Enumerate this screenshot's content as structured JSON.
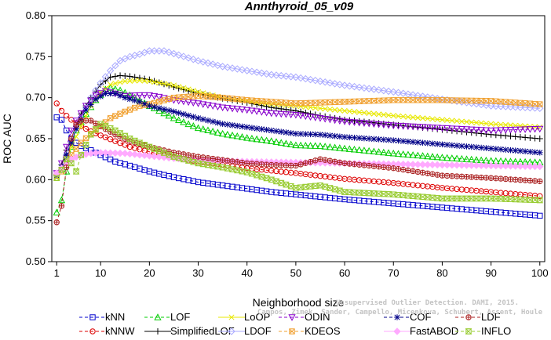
{
  "chart_data": {
    "type": "line",
    "title": "Annthyroid_05_v09",
    "xlabel": "Neighborhood size",
    "ylabel": "ROC AUC",
    "xlim": [
      0,
      101
    ],
    "ylim": [
      0.5,
      0.8
    ],
    "x_ticks": [
      1,
      10,
      20,
      30,
      40,
      50,
      60,
      70,
      80,
      90,
      100
    ],
    "y_ticks": [
      0.5,
      0.55,
      0.6,
      0.65,
      0.7,
      0.75,
      0.8
    ],
    "y_tick_labels": [
      "0.50",
      "0.55",
      "0.60",
      "0.65",
      "0.70",
      "0.75",
      "0.80"
    ],
    "grid": false,
    "legend_position": "bottom",
    "series": [
      {
        "name": "kNN",
        "color": "#0000cc",
        "marker": "square",
        "dash": "4,3",
        "points": [
          [
            1,
            0.676
          ],
          [
            2,
            0.673
          ],
          [
            3,
            0.66
          ],
          [
            4,
            0.65
          ],
          [
            5,
            0.645
          ],
          [
            6,
            0.641
          ],
          [
            8,
            0.636
          ],
          [
            10,
            0.63
          ],
          [
            13,
            0.622
          ],
          [
            16,
            0.617
          ],
          [
            20,
            0.61
          ],
          [
            25,
            0.603
          ],
          [
            30,
            0.597
          ],
          [
            35,
            0.593
          ],
          [
            40,
            0.589
          ],
          [
            45,
            0.585
          ],
          [
            50,
            0.582
          ],
          [
            60,
            0.576
          ],
          [
            70,
            0.571
          ],
          [
            80,
            0.566
          ],
          [
            90,
            0.561
          ],
          [
            100,
            0.556
          ]
        ]
      },
      {
        "name": "kNNW",
        "color": "#dd0000",
        "marker": "circle",
        "dash": "4,3",
        "points": [
          [
            1,
            0.693
          ],
          [
            2,
            0.684
          ],
          [
            3,
            0.678
          ],
          [
            4,
            0.673
          ],
          [
            5,
            0.669
          ],
          [
            6,
            0.665
          ],
          [
            8,
            0.659
          ],
          [
            10,
            0.654
          ],
          [
            13,
            0.647
          ],
          [
            16,
            0.64
          ],
          [
            20,
            0.634
          ],
          [
            25,
            0.627
          ],
          [
            30,
            0.622
          ],
          [
            35,
            0.618
          ],
          [
            40,
            0.614
          ],
          [
            45,
            0.611
          ],
          [
            50,
            0.608
          ],
          [
            60,
            0.601
          ],
          [
            70,
            0.596
          ],
          [
            80,
            0.59
          ],
          [
            90,
            0.585
          ],
          [
            100,
            0.58
          ]
        ]
      },
      {
        "name": "LOF",
        "color": "#00cc00",
        "marker": "triangle-up",
        "dash": "4,3",
        "points": [
          [
            1,
            0.56
          ],
          [
            2,
            0.575
          ],
          [
            3,
            0.61
          ],
          [
            4,
            0.64
          ],
          [
            5,
            0.66
          ],
          [
            7,
            0.68
          ],
          [
            9,
            0.697
          ],
          [
            11,
            0.71
          ],
          [
            12,
            0.712
          ],
          [
            14,
            0.709
          ],
          [
            17,
            0.7
          ],
          [
            20,
            0.69
          ],
          [
            25,
            0.675
          ],
          [
            30,
            0.663
          ],
          [
            35,
            0.656
          ],
          [
            40,
            0.651
          ],
          [
            45,
            0.647
          ],
          [
            50,
            0.642
          ],
          [
            55,
            0.641
          ],
          [
            60,
            0.638
          ],
          [
            70,
            0.632
          ],
          [
            80,
            0.627
          ],
          [
            90,
            0.623
          ],
          [
            100,
            0.621
          ]
        ]
      },
      {
        "name": "SimplifiedLOF",
        "color": "#000000",
        "marker": "plus",
        "dash": "",
        "points": [
          [
            1,
            0.606
          ],
          [
            2,
            0.618
          ],
          [
            3,
            0.636
          ],
          [
            4,
            0.65
          ],
          [
            5,
            0.665
          ],
          [
            6,
            0.68
          ],
          [
            8,
            0.7
          ],
          [
            10,
            0.716
          ],
          [
            12,
            0.725
          ],
          [
            14,
            0.727
          ],
          [
            16,
            0.726
          ],
          [
            20,
            0.722
          ],
          [
            25,
            0.713
          ],
          [
            30,
            0.705
          ],
          [
            35,
            0.699
          ],
          [
            40,
            0.694
          ],
          [
            45,
            0.688
          ],
          [
            50,
            0.684
          ],
          [
            55,
            0.678
          ],
          [
            60,
            0.673
          ],
          [
            70,
            0.667
          ],
          [
            80,
            0.661
          ],
          [
            90,
            0.655
          ],
          [
            100,
            0.65
          ]
        ]
      },
      {
        "name": "LoOP",
        "color": "#e8e800",
        "marker": "x",
        "dash": "",
        "points": [
          [
            1,
            0.603
          ],
          [
            2,
            0.61
          ],
          [
            3,
            0.624
          ],
          [
            4,
            0.64
          ],
          [
            6,
            0.665
          ],
          [
            8,
            0.69
          ],
          [
            10,
            0.706
          ],
          [
            12,
            0.716
          ],
          [
            15,
            0.72
          ],
          [
            18,
            0.721
          ],
          [
            20,
            0.72
          ],
          [
            25,
            0.715
          ],
          [
            30,
            0.707
          ],
          [
            35,
            0.7
          ],
          [
            40,
            0.696
          ],
          [
            45,
            0.692
          ],
          [
            50,
            0.69
          ],
          [
            60,
            0.684
          ],
          [
            70,
            0.678
          ],
          [
            80,
            0.673
          ],
          [
            90,
            0.668
          ],
          [
            100,
            0.664
          ]
        ]
      },
      {
        "name": "LDOF",
        "color": "#aaaaff",
        "marker": "diamond",
        "dash": "",
        "points": [
          [
            1,
            0.605
          ],
          [
            2,
            0.612
          ],
          [
            3,
            0.63
          ],
          [
            4,
            0.65
          ],
          [
            6,
            0.675
          ],
          [
            8,
            0.7
          ],
          [
            10,
            0.718
          ],
          [
            12,
            0.733
          ],
          [
            14,
            0.745
          ],
          [
            16,
            0.75
          ],
          [
            18,
            0.753
          ],
          [
            20,
            0.757
          ],
          [
            23,
            0.757
          ],
          [
            26,
            0.752
          ],
          [
            30,
            0.745
          ],
          [
            35,
            0.738
          ],
          [
            40,
            0.733
          ],
          [
            45,
            0.728
          ],
          [
            50,
            0.725
          ],
          [
            55,
            0.72
          ],
          [
            60,
            0.715
          ],
          [
            70,
            0.707
          ],
          [
            80,
            0.698
          ],
          [
            90,
            0.69
          ],
          [
            100,
            0.687
          ]
        ]
      },
      {
        "name": "ODIN",
        "color": "#8800cc",
        "marker": "triangle-down",
        "dash": "4,3",
        "points": [
          [
            1,
            0.608
          ],
          [
            2,
            0.62
          ],
          [
            3,
            0.64
          ],
          [
            4,
            0.66
          ],
          [
            5,
            0.672
          ],
          [
            7,
            0.69
          ],
          [
            9,
            0.703
          ],
          [
            11,
            0.708
          ],
          [
            13,
            0.705
          ],
          [
            15,
            0.702
          ],
          [
            18,
            0.703
          ],
          [
            20,
            0.703
          ],
          [
            22,
            0.701
          ],
          [
            25,
            0.697
          ],
          [
            30,
            0.693
          ],
          [
            35,
            0.688
          ],
          [
            40,
            0.685
          ],
          [
            45,
            0.681
          ],
          [
            50,
            0.679
          ],
          [
            55,
            0.675
          ],
          [
            60,
            0.671
          ],
          [
            70,
            0.666
          ],
          [
            80,
            0.663
          ],
          [
            90,
            0.66
          ],
          [
            100,
            0.662
          ]
        ]
      },
      {
        "name": "KDEOS",
        "color": "#f0a030",
        "marker": "square-x",
        "dash": "4,3",
        "points": [
          [
            1,
            0.605
          ],
          [
            2,
            0.61
          ],
          [
            3,
            0.622
          ],
          [
            4,
            0.63
          ],
          [
            6,
            0.645
          ],
          [
            8,
            0.656
          ],
          [
            10,
            0.665
          ],
          [
            12,
            0.675
          ],
          [
            15,
            0.683
          ],
          [
            18,
            0.69
          ],
          [
            20,
            0.692
          ],
          [
            25,
            0.7
          ],
          [
            30,
            0.702
          ],
          [
            35,
            0.7
          ],
          [
            40,
            0.697
          ],
          [
            45,
            0.695
          ],
          [
            50,
            0.693
          ],
          [
            60,
            0.695
          ],
          [
            70,
            0.697
          ],
          [
            80,
            0.697
          ],
          [
            90,
            0.696
          ],
          [
            100,
            0.692
          ]
        ]
      },
      {
        "name": "COF",
        "color": "#000088",
        "marker": "star",
        "dash": "4,3",
        "points": [
          [
            1,
            0.605
          ],
          [
            2,
            0.615
          ],
          [
            3,
            0.63
          ],
          [
            4,
            0.645
          ],
          [
            5,
            0.662
          ],
          [
            7,
            0.685
          ],
          [
            9,
            0.698
          ],
          [
            11,
            0.705
          ],
          [
            13,
            0.705
          ],
          [
            15,
            0.7
          ],
          [
            18,
            0.695
          ],
          [
            20,
            0.69
          ],
          [
            25,
            0.683
          ],
          [
            30,
            0.675
          ],
          [
            35,
            0.668
          ],
          [
            40,
            0.664
          ],
          [
            45,
            0.66
          ],
          [
            50,
            0.656
          ],
          [
            55,
            0.655
          ],
          [
            60,
            0.652
          ],
          [
            70,
            0.648
          ],
          [
            80,
            0.643
          ],
          [
            90,
            0.638
          ],
          [
            100,
            0.633
          ]
        ]
      },
      {
        "name": "FastABOD",
        "color": "#ffaaff",
        "marker": "diamond-filled",
        "dash": "",
        "points": [
          [
            1,
            0.608
          ],
          [
            2,
            0.614
          ],
          [
            3,
            0.62
          ],
          [
            4,
            0.625
          ],
          [
            6,
            0.63
          ],
          [
            8,
            0.632
          ],
          [
            10,
            0.633
          ],
          [
            15,
            0.632
          ],
          [
            20,
            0.629
          ],
          [
            25,
            0.626
          ],
          [
            30,
            0.624
          ],
          [
            40,
            0.622
          ],
          [
            50,
            0.621
          ],
          [
            60,
            0.62
          ],
          [
            70,
            0.619
          ],
          [
            80,
            0.618
          ],
          [
            90,
            0.617
          ],
          [
            100,
            0.616
          ]
        ]
      },
      {
        "name": "LDF",
        "color": "#aa2222",
        "marker": "circle-plus",
        "dash": "4,3",
        "points": [
          [
            1,
            0.548
          ],
          [
            2,
            0.568
          ],
          [
            3,
            0.615
          ],
          [
            4,
            0.65
          ],
          [
            5,
            0.667
          ],
          [
            6,
            0.672
          ],
          [
            8,
            0.672
          ],
          [
            10,
            0.665
          ],
          [
            13,
            0.655
          ],
          [
            16,
            0.647
          ],
          [
            20,
            0.64
          ],
          [
            25,
            0.633
          ],
          [
            30,
            0.628
          ],
          [
            35,
            0.624
          ],
          [
            40,
            0.62
          ],
          [
            45,
            0.618
          ],
          [
            50,
            0.617
          ],
          [
            55,
            0.625
          ],
          [
            60,
            0.62
          ],
          [
            70,
            0.614
          ],
          [
            80,
            0.605
          ],
          [
            90,
            0.602
          ],
          [
            100,
            0.598
          ]
        ]
      },
      {
        "name": "INFLO",
        "color": "#99cc33",
        "marker": "hourglass",
        "dash": "4,3",
        "points": [
          [
            1,
            0.602
          ],
          [
            2,
            0.612
          ],
          [
            3,
            0.625
          ],
          [
            4,
            0.62
          ],
          [
            5,
            0.61
          ],
          [
            6,
            0.63
          ],
          [
            8,
            0.655
          ],
          [
            10,
            0.668
          ],
          [
            13,
            0.66
          ],
          [
            16,
            0.65
          ],
          [
            20,
            0.64
          ],
          [
            25,
            0.628
          ],
          [
            30,
            0.62
          ],
          [
            35,
            0.615
          ],
          [
            40,
            0.609
          ],
          [
            45,
            0.6
          ],
          [
            50,
            0.59
          ],
          [
            55,
            0.593
          ],
          [
            60,
            0.585
          ],
          [
            70,
            0.582
          ],
          [
            80,
            0.577
          ],
          [
            90,
            0.577
          ],
          [
            100,
            0.575
          ]
        ]
      }
    ]
  },
  "watermark": {
    "line1": "Unsupervised Outlier Detection. DAMI, 2015.",
    "line2": "Campos, Zimek, Sander, Campello, Micenkova, Schubert, Assent, Houle"
  }
}
